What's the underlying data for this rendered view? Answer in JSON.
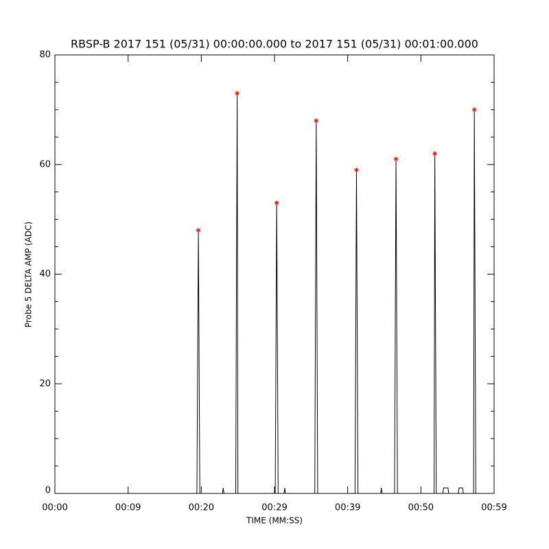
{
  "chart_data": {
    "type": "line",
    "title": "RBSP-B 2017 151 (05/31) 00:00:00.000 to 2017 151 (05/31) 00:01:00.000",
    "x_label": "TIME (MM:SS)",
    "y_label": "Probe 5 DELTA AMP (ADC)",
    "xlim": [
      0,
      60
    ],
    "xticks": [
      {
        "value": 0,
        "label": "00:00"
      },
      {
        "value": 10,
        "label": "00:09"
      },
      {
        "value": 20,
        "label": "00:20"
      },
      {
        "value": 30,
        "label": "00:29"
      },
      {
        "value": 40,
        "label": "00:39"
      },
      {
        "value": 50,
        "label": "00:50"
      },
      {
        "value": 60,
        "label": "00:59"
      }
    ],
    "ylim": [
      0,
      80
    ],
    "yticks": [
      0,
      20,
      40,
      60,
      80
    ],
    "y_minor_ticks": [
      5,
      10,
      15,
      25,
      30,
      35,
      45,
      50,
      55,
      65,
      70,
      75
    ],
    "series": [
      {
        "style": "line",
        "color": "#000000",
        "x": [
          0,
          19.4,
          19.6,
          19.8,
          22.9,
          23.0,
          23.1,
          24.7,
          24.9,
          25.0,
          30.1,
          30.3,
          30.5,
          31.3,
          31.4,
          31.5,
          35.5,
          35.7,
          35.9,
          41.0,
          41.2,
          41.4,
          44.5,
          44.6,
          44.7,
          46.4,
          46.6,
          46.8,
          51.8,
          51.9,
          52.1,
          53.0,
          53.1,
          53.7,
          53.8,
          55.1,
          55.2,
          55.7,
          55.8,
          57.2,
          57.3,
          57.5,
          60
        ],
        "values": [
          0,
          0,
          48,
          0,
          0,
          1,
          0,
          0,
          73,
          0,
          0,
          53,
          0,
          0,
          1,
          0,
          0,
          68,
          0,
          0,
          59,
          0,
          0,
          1,
          0,
          0,
          61,
          0,
          0,
          62,
          0,
          0,
          1,
          1,
          0,
          0,
          1,
          1,
          0,
          0,
          70,
          0,
          0
        ]
      },
      {
        "style": "markers",
        "color": "#ff0000",
        "x": [
          19.6,
          24.9,
          30.3,
          35.7,
          41.2,
          46.6,
          51.9,
          57.3
        ],
        "values": [
          48,
          73,
          53,
          68,
          59,
          61,
          62,
          70
        ]
      }
    ]
  }
}
